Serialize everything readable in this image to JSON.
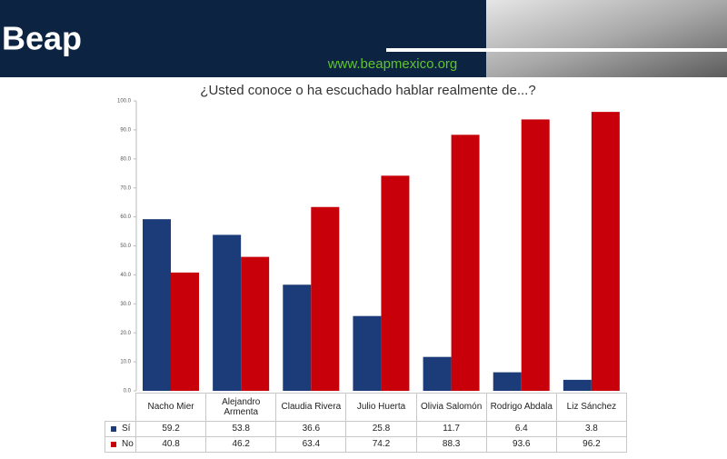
{
  "header": {
    "logo": "Beap",
    "url": "www.beapmexico.org"
  },
  "chart_data": {
    "type": "bar",
    "title": "¿Usted conoce o ha escuchado hablar realmente de...?",
    "categories": [
      "Nacho Mier",
      "Alejandro Armenta",
      "Claudia Rivera",
      "Julio Huerta",
      "Olivia Salomón",
      "Rodrigo Abdala",
      "Liz Sánchez"
    ],
    "series": [
      {
        "name": "Sí",
        "color": "#1b3c78",
        "values": [
          59.2,
          53.8,
          36.6,
          25.8,
          11.7,
          6.4,
          3.8
        ]
      },
      {
        "name": "No",
        "color": "#c8000a",
        "values": [
          40.8,
          46.2,
          63.4,
          74.2,
          88.3,
          93.6,
          96.2
        ]
      }
    ],
    "ylim": [
      0,
      100
    ],
    "yticks": [
      {
        "value": 0,
        "label": "0.0"
      },
      {
        "value": 10,
        "label": "10.0"
      },
      {
        "value": 20,
        "label": "20.0"
      },
      {
        "value": 30,
        "label": "30.0"
      },
      {
        "value": 40,
        "label": "40.0"
      },
      {
        "value": 50,
        "label": "50.0"
      },
      {
        "value": 60,
        "label": "60.0"
      },
      {
        "value": 70,
        "label": "70.0"
      },
      {
        "value": 80,
        "label": "80.0"
      },
      {
        "value": 90,
        "label": "90.0"
      },
      {
        "value": 100,
        "label": "100.0"
      }
    ]
  }
}
